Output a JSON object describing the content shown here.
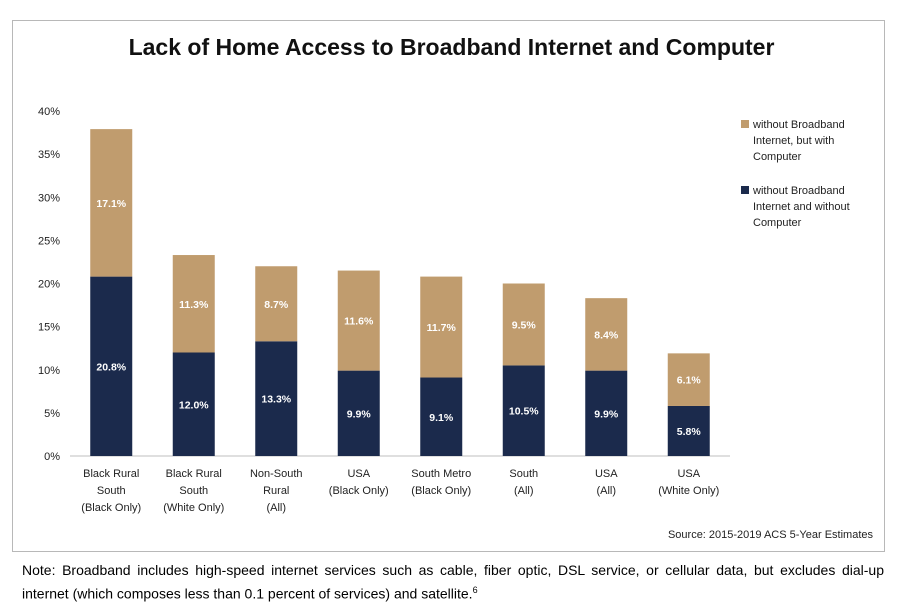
{
  "chart_data": {
    "type": "bar",
    "stacked": true,
    "title": "Lack of Home Access to Broadband Internet and Computer",
    "categories": [
      [
        "Black Rural",
        "South",
        "(Black Only)"
      ],
      [
        "Black Rural",
        "South",
        "(White Only)"
      ],
      [
        "Non-South",
        "Rural",
        "(All)"
      ],
      [
        "USA",
        "(Black Only)"
      ],
      [
        "South Metro",
        "(Black Only)"
      ],
      [
        "South",
        "(All)"
      ],
      [
        "USA",
        "(All)"
      ],
      [
        "USA",
        "(White Only)"
      ]
    ],
    "series": [
      {
        "name": "without Broadband Internet and without Computer",
        "legend_lines": [
          "without Broadband",
          "Internet and without",
          "Computer"
        ],
        "color": "#1b2a4c",
        "values": [
          20.8,
          12.0,
          13.3,
          9.9,
          9.1,
          10.5,
          9.9,
          5.8
        ],
        "labels": [
          "20.8%",
          "12.0%",
          "13.3%",
          "9.9%",
          "9.1%",
          "10.5%",
          "9.9%",
          "5.8%"
        ]
      },
      {
        "name": "without Broadband Internet, but with Computer",
        "legend_lines": [
          "without Broadband",
          "Internet, but with",
          "Computer"
        ],
        "color": "#c09c6e",
        "values": [
          17.1,
          11.3,
          8.7,
          11.6,
          11.7,
          9.5,
          8.4,
          6.1
        ],
        "labels": [
          "17.1%",
          "11.3%",
          "8.7%",
          "11.6%",
          "11.7%",
          "9.5%",
          "8.4%",
          "6.1%"
        ]
      }
    ],
    "ylim": [
      0,
      40
    ],
    "yticks": [
      0,
      5,
      10,
      15,
      20,
      25,
      30,
      35,
      40
    ],
    "ytick_labels": [
      "0%",
      "5%",
      "10%",
      "15%",
      "20%",
      "25%",
      "30%",
      "35%",
      "40%"
    ],
    "grid": false,
    "legend_position": "right"
  },
  "source": "Source: 2015-2019 ACS 5-Year Estimates",
  "note": "Note: Broadband includes high-speed internet services such as cable, fiber optic, DSL service, or cellular data, but excludes dial-up internet (which composes less than 0.1 percent of services) and satellite.",
  "note_footnote": "6"
}
